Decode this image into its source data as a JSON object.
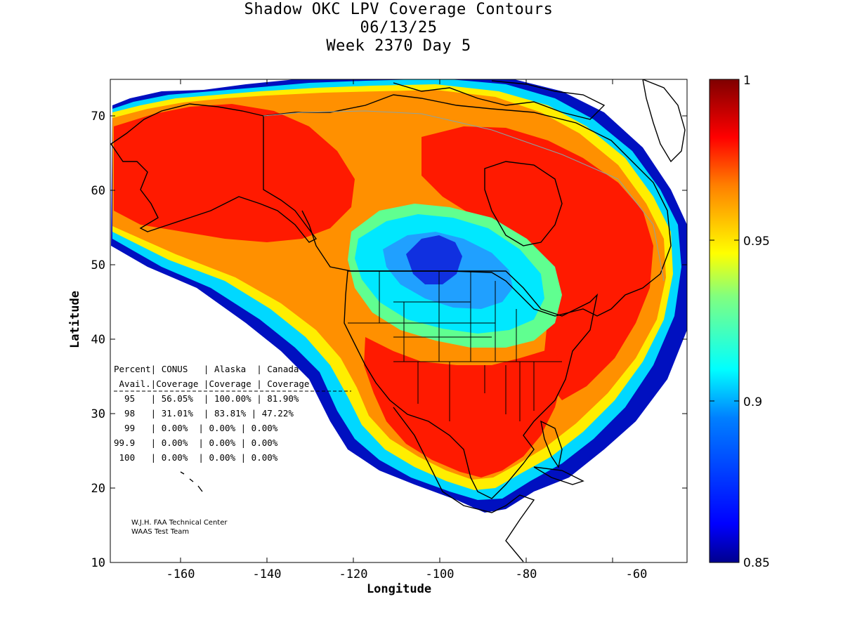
{
  "title": {
    "line1": "Shadow OKC LPV Coverage Contours",
    "line2": "06/13/25",
    "line3": "Week 2370 Day 5"
  },
  "axes": {
    "xlabel": "Longitude",
    "ylabel": "Latitude",
    "x_ticks": [
      "-160",
      "-140",
      "-120",
      "-100",
      "-80",
      "-60"
    ],
    "y_ticks": [
      "70",
      "60",
      "50",
      "40",
      "30",
      "20",
      "10"
    ]
  },
  "colorbar": {
    "ticks": [
      "1",
      "0.95",
      "0.9",
      "0.85"
    ],
    "colors": [
      "#7f0000",
      "#ff0000",
      "#ff8000",
      "#ffff00",
      "#80ff80",
      "#00ffff",
      "#0080ff",
      "#0000ff",
      "#00008f"
    ]
  },
  "chart_data": {
    "type": "heatmap",
    "title": "Shadow OKC LPV Coverage Contours",
    "subtitle": "06/13/25 Week 2370 Day 5",
    "xlabel": "Longitude",
    "ylabel": "Latitude",
    "xlim": [
      -175,
      -50
    ],
    "ylim": [
      10,
      75
    ],
    "clim": [
      0.85,
      1
    ],
    "colormap": "jet"
  },
  "stats_table": {
    "header1": "Percent| CONUS   | Alaska  | Canada",
    "header2": " Avail.|Coverage |Coverage | Coverage",
    "rows": [
      "  95   | 56.05%  | 100.00% | 81.90%",
      "  98   | 31.01%  | 83.81% | 47.22%",
      "  99   | 0.00%  | 0.00% | 0.00%",
      "99.9   | 0.00%  | 0.00% | 0.00%",
      " 100   | 0.00%  | 0.00% | 0.00%"
    ]
  },
  "credit": {
    "line1": "W.J.H. FAA Technical Center",
    "line2": "WAAS Test Team"
  }
}
